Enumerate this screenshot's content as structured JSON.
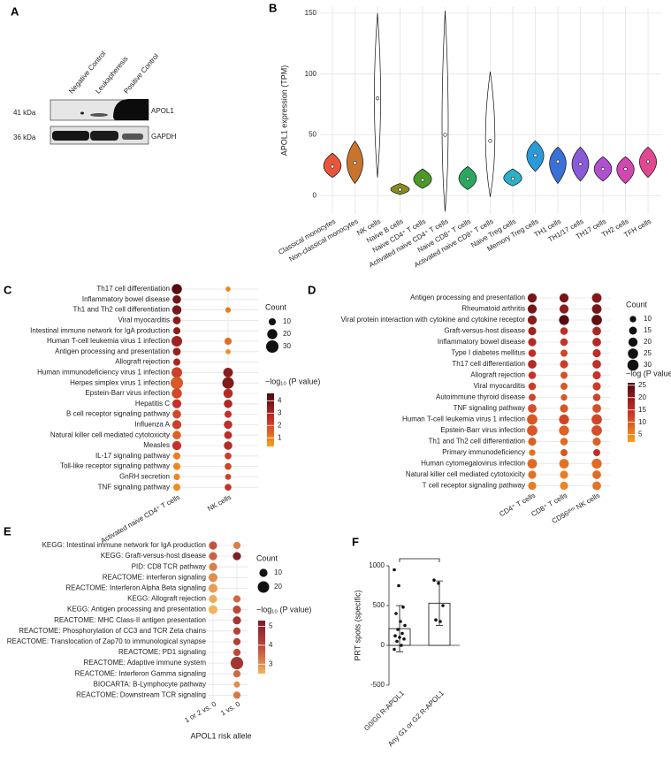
{
  "blot": {
    "panel": "A",
    "lanes": [
      "Negative Control",
      "Leukapheresis",
      "Positive Control"
    ],
    "bands": [
      {
        "size": "41 kDa",
        "protein": "APOL1"
      },
      {
        "size": "36 kDa",
        "protein": "GAPDH"
      }
    ]
  },
  "chart_data": [
    {
      "type": "violin",
      "panel": "B",
      "ylabel": "APOL1 expression (TPM)",
      "categories": [
        "Classical monocytes",
        "Non-classical monocytes",
        "NK cells",
        "Naive B cells",
        "Naive CD4⁺ T cells",
        "Activated naive CD4⁺ T cells",
        "Naive CD8⁺ T cells",
        "Activated naive CD8⁺ T cells",
        "Naive Treg cells",
        "Memory Treg cells",
        "TH1 cells",
        "TH1/17 cells",
        "TH17 cells",
        "TH2 cells",
        "TFH cells"
      ],
      "values": [
        24,
        27,
        80,
        5,
        13,
        50,
        14,
        45,
        14,
        33,
        28,
        26,
        22,
        22,
        28
      ],
      "min": [
        15,
        10,
        15,
        1,
        6,
        -13,
        5,
        -1,
        8,
        20,
        10,
        12,
        12,
        10,
        15
      ],
      "max": [
        35,
        45,
        150,
        10,
        22,
        152,
        24,
        102,
        22,
        45,
        40,
        40,
        32,
        32,
        40
      ],
      "colors": [
        "#e8553a",
        "#c8742c",
        "#ffffff",
        "#8a8a1e",
        "#4a9a2a",
        "#ffffff",
        "#2aa860",
        "#ffffff",
        "#2ab0c8",
        "#2a9ad8",
        "#3a70d8",
        "#8a5ad8",
        "#b050d0",
        "#d048b0",
        "#e04890"
      ],
      "ylim": [
        -15,
        155
      ],
      "yticks": [
        0,
        50,
        100,
        150
      ],
      "grid": true
    },
    {
      "type": "dotplot",
      "panel": "C",
      "rows": [
        "Th17 cell differentiation",
        "Inflammatory bowel disease",
        "Th1 and Th2 cell differentiation",
        "Viral myocarditis",
        "Intestinal immune network for IgA production",
        "Human T-cell leukemia virus 1 infection",
        "Antigen processing and presentation",
        "Allograft rejection",
        "Human immunodeficiency virus 1 infection",
        "Herpes simplex virus 1 infection",
        "Epstein-Barr virus infection",
        "Hepatitis C",
        "B cell receptor signaling pathway",
        "Influenza A",
        "Natural killer cell mediated cytotoxicity",
        "Measles",
        "IL-17 signaling pathway",
        "Toll-like receptor signaling pathway",
        "GnRH secretion",
        "TNF signaling pathway"
      ],
      "series": [
        {
          "name": "Activated naive CD4⁺ T cells",
          "count": [
            20,
            14,
            17,
            12,
            10,
            22,
            12,
            10,
            22,
            30,
            20,
            16,
            14,
            16,
            14,
            16,
            10,
            10,
            8,
            10
          ],
          "logp": [
            4.5,
            4,
            3.8,
            3.6,
            3.5,
            3.2,
            3.3,
            3,
            2.2,
            1.7,
            2,
            2.5,
            2,
            2.2,
            1.5,
            2.5,
            1,
            0.8,
            0.8,
            0.7
          ]
        },
        {
          "name": "NK cells",
          "count": [
            5,
            null,
            6,
            null,
            null,
            10,
            5,
            null,
            18,
            26,
            17,
            14,
            10,
            14,
            12,
            14,
            9,
            9,
            7,
            9
          ],
          "logp": [
            0.8,
            null,
            1,
            null,
            null,
            1.3,
            0.7,
            null,
            3.5,
            3.7,
            2.8,
            2.9,
            2.5,
            2.6,
            2.7,
            2.8,
            2.3,
            2.1,
            2.2,
            2.5
          ]
        }
      ],
      "count_title": "Count",
      "count_ticks": [
        10,
        20,
        30
      ],
      "color_title": "−log₁₀ (P value)",
      "color_lim": [
        0.3,
        4.6
      ],
      "color_ticks": [
        1,
        2,
        3,
        4
      ],
      "colors": [
        "#f7a21e",
        "#c8322a",
        "#4e0810"
      ]
    },
    {
      "type": "dotplot",
      "panel": "D",
      "rows": [
        "Antigen processing and presentation",
        "Rheumatoid arthritis",
        "Viral protein interaction with cytokine and cytokine receptor",
        "Graft-versus-host disease",
        "Inflammatory bowel disease",
        "Type I diabetes mellitus",
        "Th17 cell differentiation",
        "Allograft rejection",
        "Viral myocarditis",
        "Autoimmune thyroid disease",
        "TNF signaling pathway",
        "Human T-cell leukemia virus 1 infection",
        "Epstein-Barr virus infection",
        "Th1 and Th2 cell differentiation",
        "Primary immunodeficiency",
        "Human cytomegalovirus infection",
        "Natural killer cell mediated cytotoxicity",
        "T cell receptor signaling pathway"
      ],
      "series": [
        {
          "name": "CD4⁺ T cells",
          "count": [
            20,
            20,
            20,
            16,
            16,
            14,
            18,
            14,
            14,
            12,
            18,
            26,
            26,
            16,
            10,
            22,
            16,
            16
          ],
          "logp": [
            22,
            22,
            20,
            18,
            16,
            15,
            16,
            14,
            13,
            12,
            11,
            10,
            10,
            9,
            7,
            8,
            7,
            6
          ]
        },
        {
          "name": "CD8⁺ T cells",
          "count": [
            20,
            20,
            24,
            14,
            14,
            12,
            16,
            12,
            12,
            10,
            16,
            24,
            24,
            14,
            12,
            22,
            16,
            16
          ],
          "logp": [
            22,
            20,
            25,
            15,
            14,
            12,
            13,
            11,
            10,
            10,
            10,
            12,
            9,
            8,
            10,
            7,
            6,
            5
          ]
        },
        {
          "name": "CD56ᵈⁱᵐ NK cells",
          "count": [
            22,
            22,
            26,
            18,
            18,
            16,
            18,
            16,
            16,
            14,
            18,
            26,
            26,
            16,
            12,
            24,
            18,
            18
          ],
          "logp": [
            21,
            22,
            24,
            17,
            16,
            15,
            15,
            14,
            13,
            12,
            11,
            12,
            11,
            9,
            15,
            8,
            8,
            7
          ]
        }
      ],
      "count_title": "Count",
      "count_ticks": [
        10,
        15,
        20,
        25,
        30
      ],
      "color_title": "−log (P value)",
      "color_lim": [
        2,
        26
      ],
      "color_ticks": [
        5,
        10,
        15,
        20,
        25
      ],
      "colors": [
        "#f7a21e",
        "#c8322a",
        "#4e0810"
      ]
    },
    {
      "type": "dotplot",
      "panel": "E",
      "xlabel": "APOL1 risk allele",
      "rows": [
        "KEGG: Intestinal immune network for IgA production",
        "KEGG: Graft-versus-host disease",
        "PID: CD8 TCR pathway",
        "REACTOME: interferon signaling",
        "REACTOME: Interferon Alpha Beta signaling",
        "KEGG: Allograft rejection",
        "KEGG: Antigen processing and presentation",
        "REACTOME: MHC Class-II antigen presentation",
        "REACTOME: Phosphorylation of CC3 and TCR Zeta chains",
        "REACTOME: Translocation of Zap70 to immunological synapse",
        "REACTOME: PD1 signaling",
        "REACTOME: Adaptive immune system",
        "REACTOME: Interferon Gamma signaling",
        "BIOCARTA: B-Lymphocyte pathway",
        "REACTOME: Downstream TCR signaling"
      ],
      "series": [
        {
          "name": "1 or 2 vs. 0",
          "count": [
            10,
            10,
            10,
            12,
            12,
            10,
            12,
            null,
            null,
            null,
            null,
            null,
            null,
            null,
            null
          ],
          "logp": [
            3.8,
            3.6,
            3.2,
            3,
            2.8,
            2.6,
            2.5,
            null,
            null,
            null,
            null,
            null,
            null,
            null,
            null
          ]
        },
        {
          "name": "1 vs. 0",
          "count": [
            8,
            10,
            null,
            null,
            null,
            8,
            10,
            10,
            8,
            8,
            8,
            24,
            8,
            6,
            8
          ],
          "logp": [
            3.2,
            5.2,
            null,
            null,
            null,
            3.5,
            4,
            4.5,
            4.2,
            4.2,
            4,
            4.5,
            3.5,
            3,
            3.3
          ]
        }
      ],
      "count_title": "Count",
      "count_ticks": [
        10,
        20
      ],
      "color_title": "−log₁₀ (P value)",
      "color_lim": [
        2.5,
        5.3
      ],
      "color_ticks": [
        3,
        4,
        5
      ],
      "colors": [
        "#f2b45a",
        "#c24a3a",
        "#7a1a2a"
      ]
    },
    {
      "type": "barpoints",
      "panel": "F",
      "ylabel": "PRT spots (specific)",
      "categories": [
        "G0/G0 R-APOL1",
        "Any G1 or G2  R-APOL1"
      ],
      "values": [
        210,
        530
      ],
      "errors": [
        290,
        280
      ],
      "points": [
        [
          950,
          750,
          480,
          400,
          300,
          250,
          200,
          150,
          120,
          100,
          80,
          50,
          0,
          -50
        ],
        [
          820,
          780,
          500,
          320,
          300
        ]
      ],
      "ylim": [
        -500,
        1000
      ],
      "yticks": [
        -500,
        0,
        500,
        1000
      ]
    }
  ]
}
